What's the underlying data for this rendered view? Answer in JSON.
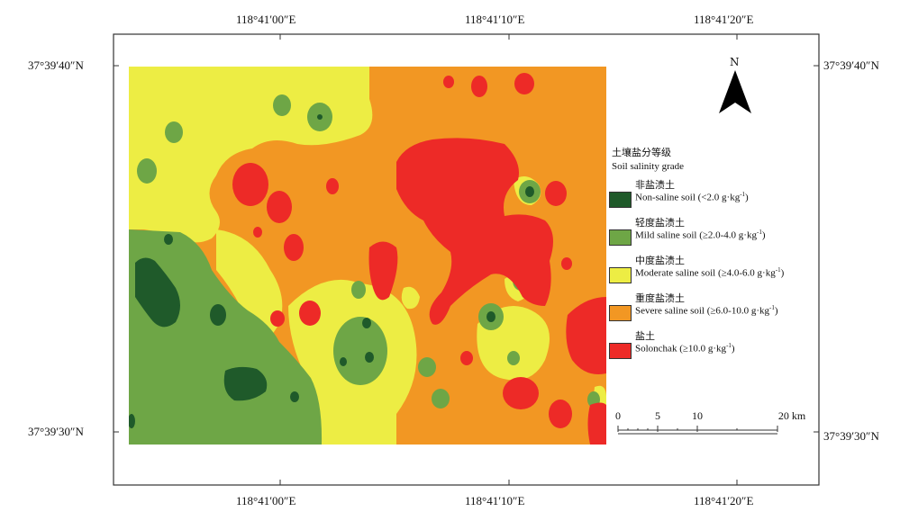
{
  "coordinates": {
    "top_left": "118°41′00″E",
    "top_mid": "118°41′10″E",
    "top_right": "118°41′20″E",
    "bottom_left": "118°41′00″E",
    "bottom_mid": "118°41′10″E",
    "bottom_right": "118°41′20″E",
    "left_top": "37°39′40″N",
    "left_bottom": "37°39′30″N",
    "right_top": "37°39′40″N",
    "right_bottom": "37°39′30″N"
  },
  "north_label": "N",
  "legend": {
    "title_zh": "土壤盐分等级",
    "title_en": "Soil salinity grade",
    "items": [
      {
        "zh": "非盐渍土",
        "en": "Non-saline soil (<2.0 g·kg",
        "sup": "-1",
        "tail": ")",
        "color": "#1f5a2a"
      },
      {
        "zh": "轻度盐渍土",
        "en": "Mild saline soil (≥2.0-4.0 g·kg",
        "sup": "-1",
        "tail": ")",
        "color": "#6ea646"
      },
      {
        "zh": "中度盐渍土",
        "en": "Moderate saline soil (≥4.0-6.0 g·kg",
        "sup": "-1",
        "tail": ")",
        "color": "#eded44"
      },
      {
        "zh": "重度盐渍土",
        "en": "Severe saline soil (≥6.0-10.0 g·kg",
        "sup": "-1",
        "tail": ")",
        "color": "#f29723"
      },
      {
        "zh": "盐土",
        "en": "Solonchak (≥10.0 g·kg",
        "sup": "-1",
        "tail": ")",
        "color": "#ed2a27"
      }
    ]
  },
  "scale": {
    "labels": [
      "0",
      "5",
      "10",
      "20 km"
    ]
  },
  "colors": {
    "non_saline": "#1f5a2a",
    "mild": "#6ea646",
    "moderate": "#eded44",
    "severe": "#f29723",
    "solonchak": "#ed2a27"
  }
}
